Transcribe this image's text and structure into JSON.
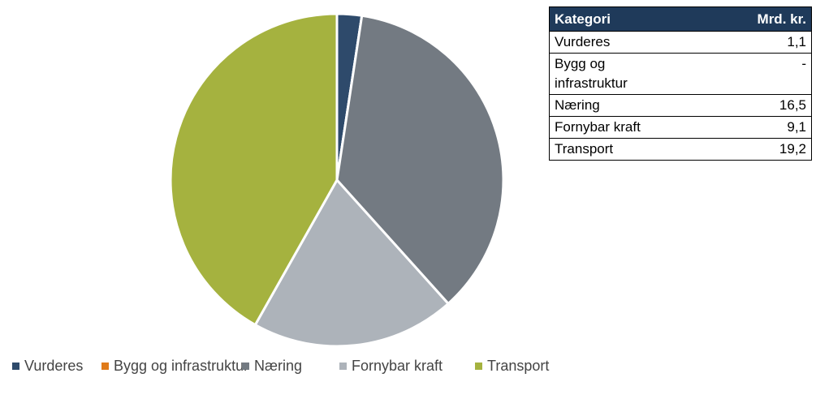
{
  "chart_data": {
    "type": "pie",
    "categories": [
      "Vurderes",
      "Bygg og infrastruktur",
      "Næring",
      "Fornybar kraft",
      "Transport"
    ],
    "values": [
      1.1,
      0,
      16.5,
      9.1,
      19.2
    ],
    "value_labels": [
      "1,1",
      "-",
      "16,5",
      "9,1",
      "19,2"
    ],
    "colors": [
      "#2e4a6b",
      "#e07b1a",
      "#737a82",
      "#adb3ba",
      "#a5b23f"
    ],
    "table_headers": [
      "Kategori",
      "Mrd. kr."
    ]
  }
}
